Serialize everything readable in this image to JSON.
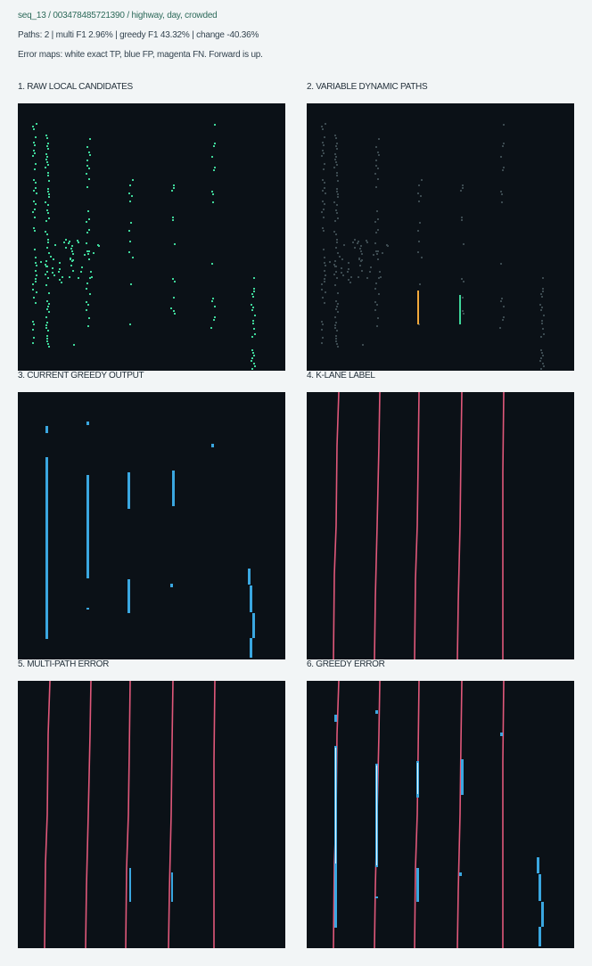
{
  "header": {
    "title": "seq_13 / 003478485721390 / highway, day, crowded",
    "stats": "Paths: 2  |  multi F1 2.96%  |  greedy F1 43.32%  |  change -40.36%",
    "legend": "Error maps: white exact TP, blue FP, magenta FN. Forward is up."
  },
  "colors": {
    "background": "#f2f5f6",
    "panel_bg": "#0b1117",
    "candidate": "#3fd79a",
    "candidate_dim": "#3c4a50",
    "path_orange": "#f2a93b",
    "output_blue": "#3aa7e0",
    "label_magenta": "#e0587a",
    "tp_white": "#e8f6ff"
  },
  "panels": [
    {
      "id": "raw",
      "label": "1. RAW LOCAL CANDIDATES"
    },
    {
      "id": "paths",
      "label": "2. VARIABLE DYNAMIC PATHS"
    },
    {
      "id": "greedy",
      "label": "3. CURRENT GREEDY OUTPUT"
    },
    {
      "id": "klane",
      "label": "4. K-LANE LABEL"
    },
    {
      "id": "multi-error",
      "label": "5. MULTI-PATH ERROR"
    },
    {
      "id": "greedy-error",
      "label": "6. GREEDY ERROR"
    }
  ]
}
